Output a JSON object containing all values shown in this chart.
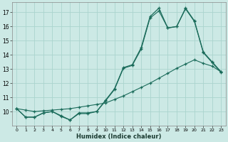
{
  "xlabel": "Humidex (Indice chaleur)",
  "background_color": "#cce9e5",
  "grid_color": "#aad4ce",
  "line_color": "#1a6b5a",
  "xlim": [
    -0.5,
    23.5
  ],
  "ylim": [
    9.0,
    17.7
  ],
  "xticks": [
    0,
    1,
    2,
    3,
    4,
    5,
    6,
    7,
    8,
    9,
    10,
    11,
    12,
    13,
    14,
    15,
    16,
    17,
    18,
    19,
    20,
    21,
    22,
    23
  ],
  "yticks": [
    10,
    11,
    12,
    13,
    14,
    15,
    16,
    17
  ],
  "line1_x": [
    0,
    1,
    2,
    3,
    4,
    5,
    6,
    7,
    8,
    9,
    10,
    11,
    12,
    13,
    14,
    15,
    16,
    17,
    18,
    19,
    20,
    21,
    22,
    23
  ],
  "line1_y": [
    10.2,
    9.6,
    9.6,
    9.9,
    10.0,
    9.7,
    9.4,
    9.9,
    9.9,
    10.0,
    10.8,
    11.6,
    13.1,
    13.3,
    14.5,
    16.7,
    17.3,
    15.9,
    16.0,
    17.3,
    16.4,
    14.2,
    13.5,
    12.8
  ],
  "line2_x": [
    0,
    1,
    2,
    3,
    4,
    5,
    6,
    7,
    8,
    9,
    10,
    11,
    12,
    13,
    14,
    15,
    16,
    17,
    18,
    19,
    20,
    21,
    22,
    23
  ],
  "line2_y": [
    10.2,
    9.6,
    9.6,
    9.9,
    10.0,
    9.65,
    9.4,
    9.85,
    9.85,
    10.0,
    10.75,
    11.55,
    13.05,
    13.25,
    14.4,
    16.6,
    17.1,
    15.9,
    16.0,
    17.25,
    16.35,
    14.15,
    13.45,
    12.75
  ],
  "line3_x": [
    0,
    1,
    2,
    3,
    4,
    5,
    6,
    7,
    8,
    9,
    10,
    11,
    12,
    13,
    14,
    15,
    16,
    17,
    18,
    19,
    20,
    21,
    22,
    23
  ],
  "line3_y": [
    10.2,
    10.1,
    10.0,
    10.05,
    10.1,
    10.15,
    10.2,
    10.3,
    10.4,
    10.5,
    10.6,
    10.85,
    11.1,
    11.4,
    11.7,
    12.0,
    12.35,
    12.7,
    13.05,
    13.35,
    13.65,
    13.4,
    13.2,
    12.8
  ]
}
